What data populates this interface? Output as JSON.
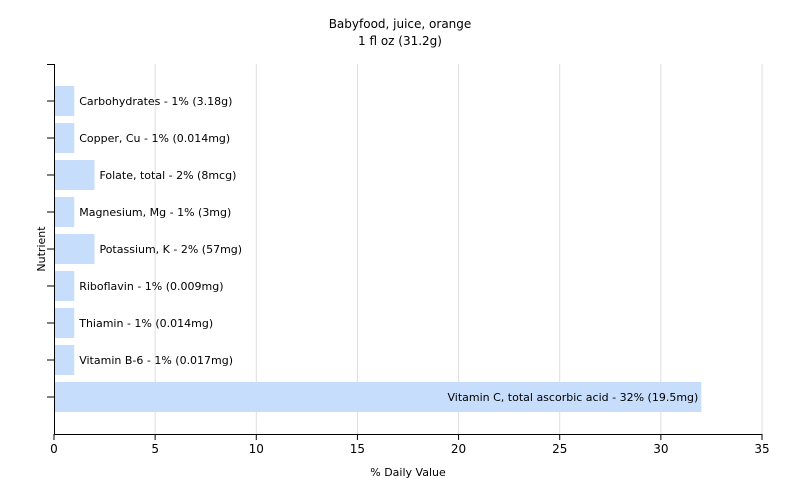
{
  "chart_data": {
    "type": "bar",
    "orientation": "horizontal",
    "title": "Babyfood, juice, orange",
    "subtitle": "1 fl oz (31.2g)",
    "xlabel": "% Daily Value",
    "ylabel": "Nutrient",
    "xlim": [
      0,
      35
    ],
    "xticks": [
      0,
      5,
      10,
      15,
      20,
      25,
      30,
      35
    ],
    "grid": true,
    "bar_color": "#c6ddfb",
    "categories": [
      "Carbohydrates",
      "Copper, Cu",
      "Folate, total",
      "Magnesium, Mg",
      "Potassium, K",
      "Riboflavin",
      "Thiamin",
      "Vitamin B-6",
      "Vitamin C, total ascorbic acid"
    ],
    "values": [
      1,
      1,
      2,
      1,
      2,
      1,
      1,
      1,
      32
    ],
    "data_labels": [
      "Carbohydrates - 1% (3.18g)",
      "Copper, Cu - 1% (0.014mg)",
      "Folate, total - 2% (8mcg)",
      "Magnesium, Mg - 1% (3mg)",
      "Potassium, K - 2% (57mg)",
      "Riboflavin - 1% (0.009mg)",
      "Thiamin - 1% (0.014mg)",
      "Vitamin B-6 - 1% (0.017mg)",
      "Vitamin C, total ascorbic acid - 32% (19.5mg)"
    ]
  }
}
